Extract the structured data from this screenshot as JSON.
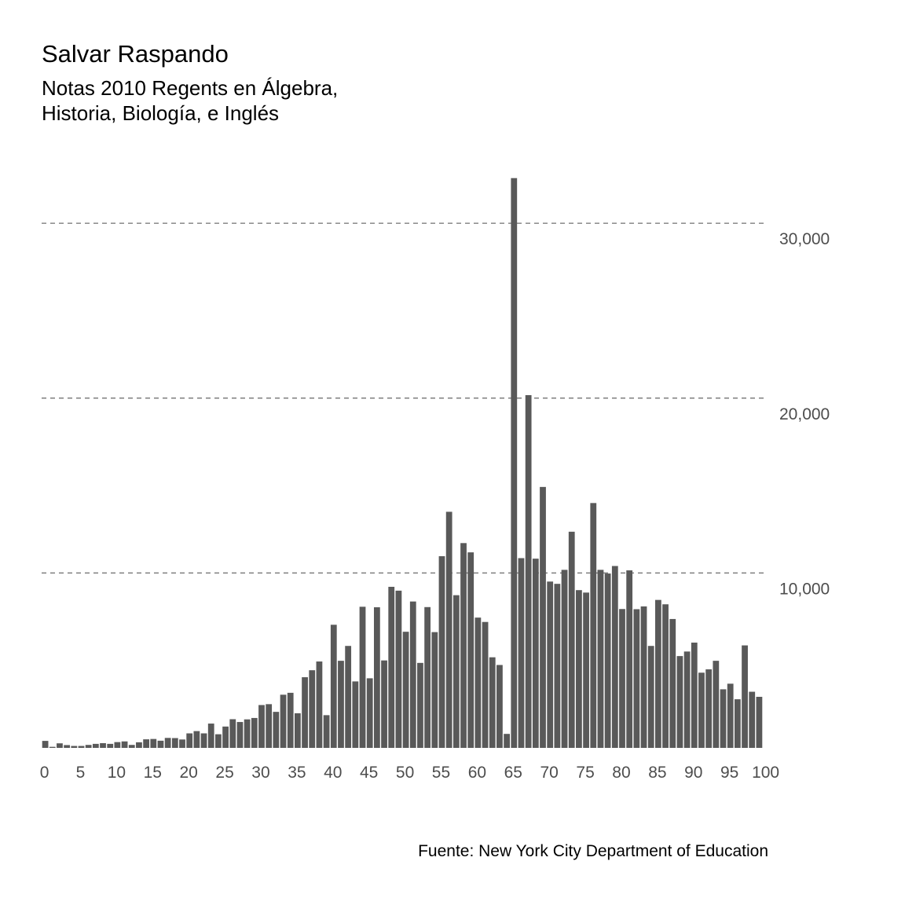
{
  "title": "Salvar Raspando",
  "subtitle": "Notas 2010 Regents en Álgebra,\nHistoria, Biología, e Inglés",
  "caption": "Fuente: New York City Department of Education",
  "chart_data": {
    "type": "bar",
    "x": [
      0,
      1,
      2,
      3,
      4,
      5,
      6,
      7,
      8,
      9,
      10,
      11,
      12,
      13,
      14,
      15,
      16,
      17,
      18,
      19,
      20,
      21,
      22,
      23,
      24,
      25,
      26,
      27,
      28,
      29,
      30,
      31,
      32,
      33,
      34,
      35,
      36,
      37,
      38,
      39,
      40,
      41,
      42,
      43,
      44,
      45,
      46,
      47,
      48,
      49,
      50,
      51,
      52,
      53,
      54,
      55,
      56,
      57,
      58,
      59,
      60,
      61,
      62,
      63,
      64,
      65,
      66,
      67,
      68,
      69,
      70,
      71,
      72,
      73,
      74,
      75,
      76,
      77,
      78,
      79,
      80,
      81,
      82,
      83,
      84,
      85,
      86,
      87,
      88,
      89,
      90,
      91,
      92,
      93,
      94,
      95,
      96,
      97,
      98,
      99
    ],
    "values": [
      400,
      60,
      260,
      160,
      110,
      110,
      170,
      230,
      270,
      230,
      330,
      370,
      170,
      320,
      490,
      510,
      410,
      570,
      560,
      480,
      830,
      960,
      830,
      1390,
      780,
      1220,
      1640,
      1480,
      1630,
      1710,
      2450,
      2500,
      2060,
      3040,
      3150,
      1980,
      4040,
      4440,
      4940,
      1870,
      7040,
      4980,
      5830,
      3800,
      8070,
      3980,
      8040,
      5000,
      9210,
      8990,
      6640,
      8370,
      4860,
      8050,
      6620,
      10960,
      13500,
      8730,
      11710,
      11180,
      7450,
      7200,
      5180,
      4740,
      800,
      32580,
      10850,
      20170,
      10820,
      14920,
      9510,
      9380,
      10180,
      12360,
      9020,
      8880,
      14000,
      10180,
      9970,
      10400,
      7940,
      10150,
      7930,
      8090,
      5830,
      8460,
      8210,
      7370,
      5250,
      5510,
      6020,
      4300,
      4490,
      4980,
      3350,
      3670,
      2780,
      5860,
      3210,
      2920
    ],
    "xticks": [
      0,
      5,
      10,
      15,
      20,
      25,
      30,
      35,
      40,
      45,
      50,
      55,
      60,
      65,
      70,
      75,
      80,
      85,
      90,
      95,
      100
    ],
    "xtick_labels": [
      "0",
      "5",
      "10",
      "15",
      "20",
      "25",
      "30",
      "35",
      "40",
      "45",
      "50",
      "55",
      "60",
      "65",
      "70",
      "75",
      "80",
      "85",
      "90",
      "95",
      "100"
    ],
    "yticks": [
      10000,
      20000,
      30000
    ],
    "ytick_labels": [
      "10,000",
      "20,000",
      "30,000"
    ],
    "ylim": [
      0,
      33600
    ],
    "xlim": [
      0,
      100
    ],
    "grid": "horizontal dashed",
    "ylabel_position": "right",
    "colors": {
      "bar": "#595959",
      "grid": "#7f7f7f",
      "tick_text": "#4d4d4d"
    }
  }
}
